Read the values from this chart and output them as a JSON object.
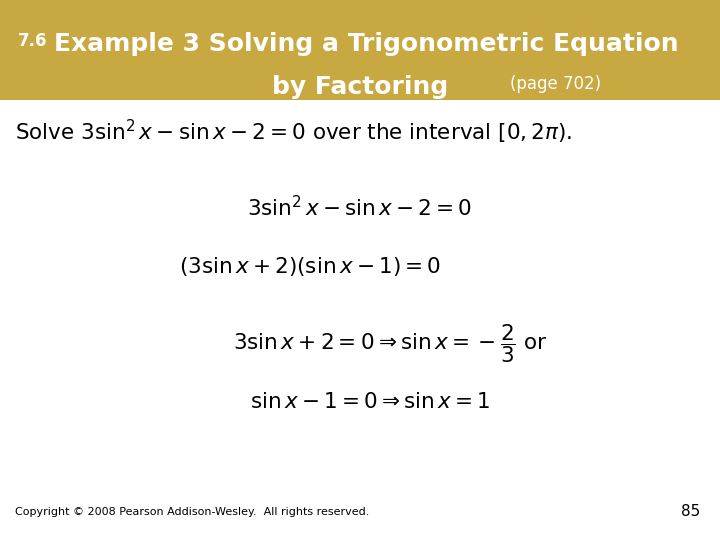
{
  "header_bg_color": "#C8A840",
  "header_text_color": "#FFFFFF",
  "body_bg_color": "#FFFFFF",
  "body_text_color": "#000000",
  "header_prefix": "7.6",
  "header_line1": "Example 3 Solving a Trigonometric Equation",
  "header_line2": "by Factoring",
  "header_small": "(page 702)",
  "page_number": "85",
  "copyright": "Copyright © 2008 Pearson Addison-Wesley.  All rights reserved.",
  "fig_width": 7.2,
  "fig_height": 5.4,
  "dpi": 100
}
